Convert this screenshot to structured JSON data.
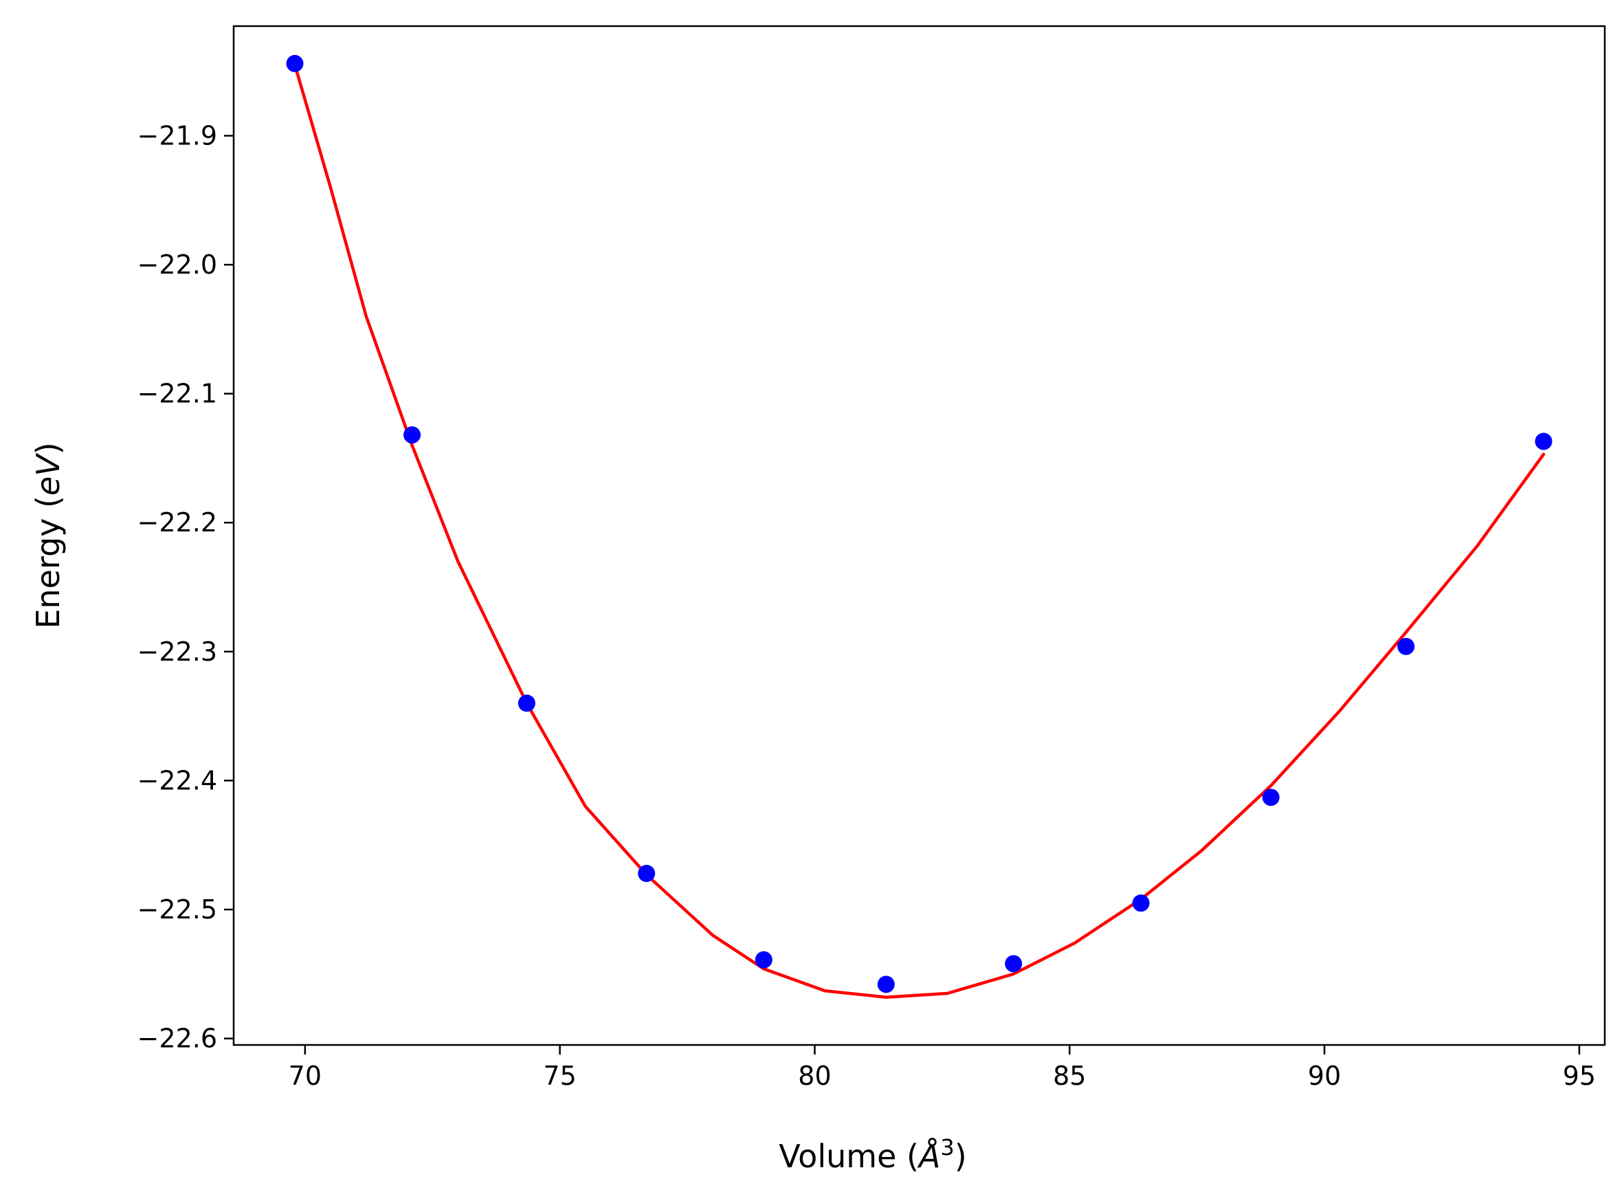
{
  "chart_data": {
    "type": "scatter",
    "xlabel_main": "Volume (",
    "xlabel_unit": "Å",
    "xlabel_sup": "3",
    "xlabel_close": ")",
    "ylabel_main": "Energy (",
    "ylabel_unit": "eV",
    "ylabel_close": ")",
    "xlim": [
      68.6,
      95.5
    ],
    "ylim": [
      -22.605,
      -21.815
    ],
    "xticks": [
      70,
      75,
      80,
      85,
      90,
      95
    ],
    "xtick_labels": [
      "70",
      "75",
      "80",
      "85",
      "90",
      "95"
    ],
    "yticks": [
      -22.6,
      -22.5,
      -22.4,
      -22.3,
      -22.2,
      -22.1,
      -22.0,
      -21.9
    ],
    "ytick_labels": [
      "−22.6",
      "−22.5",
      "−22.4",
      "−22.3",
      "−22.2",
      "−22.1",
      "−22.0",
      "−21.9"
    ],
    "grid": false,
    "series": [
      {
        "kind": "points",
        "color": "#0000ff",
        "x": [
          69.8,
          72.1,
          74.35,
          76.7,
          79.0,
          81.4,
          83.9,
          86.4,
          88.95,
          91.6,
          94.3
        ],
        "y": [
          -21.844,
          -22.132,
          -22.34,
          -22.472,
          -22.539,
          -22.558,
          -22.542,
          -22.495,
          -22.413,
          -22.296,
          -22.137
        ]
      },
      {
        "kind": "line",
        "color": "#ff0000",
        "x": [
          69.8,
          70.5,
          71.2,
          72.1,
          73.0,
          74.35,
          75.5,
          76.7,
          78.0,
          79.0,
          80.2,
          81.4,
          82.6,
          83.9,
          85.1,
          86.4,
          87.6,
          88.95,
          90.3,
          91.6,
          93.0,
          94.3
        ],
        "y": [
          -21.845,
          -21.94,
          -22.04,
          -22.14,
          -22.23,
          -22.34,
          -22.42,
          -22.473,
          -22.52,
          -22.546,
          -22.563,
          -22.568,
          -22.565,
          -22.55,
          -22.526,
          -22.492,
          -22.454,
          -22.404,
          -22.346,
          -22.285,
          -22.218,
          -22.147
        ]
      }
    ]
  }
}
